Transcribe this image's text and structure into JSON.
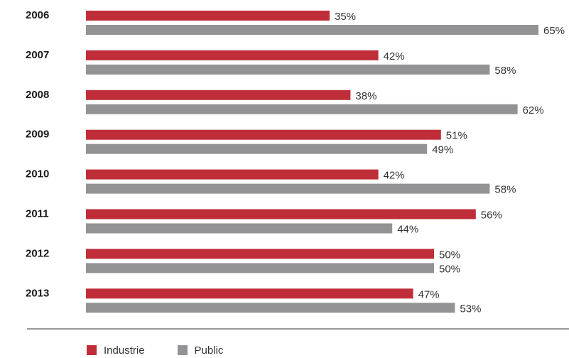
{
  "chart_data": {
    "type": "bar",
    "orientation": "horizontal",
    "categories": [
      "2006",
      "2007",
      "2008",
      "2009",
      "2010",
      "2011",
      "2012",
      "2013"
    ],
    "series": [
      {
        "name": "Industrie",
        "color": "#bf2e38",
        "values": [
          35,
          42,
          38,
          51,
          42,
          56,
          50,
          47
        ]
      },
      {
        "name": "Public",
        "color": "#939396",
        "values": [
          65,
          58,
          62,
          49,
          58,
          44,
          50,
          53
        ]
      }
    ],
    "value_suffix": "%",
    "xlim": [
      0,
      100
    ],
    "grid": false,
    "legend_position": "bottom-left"
  }
}
